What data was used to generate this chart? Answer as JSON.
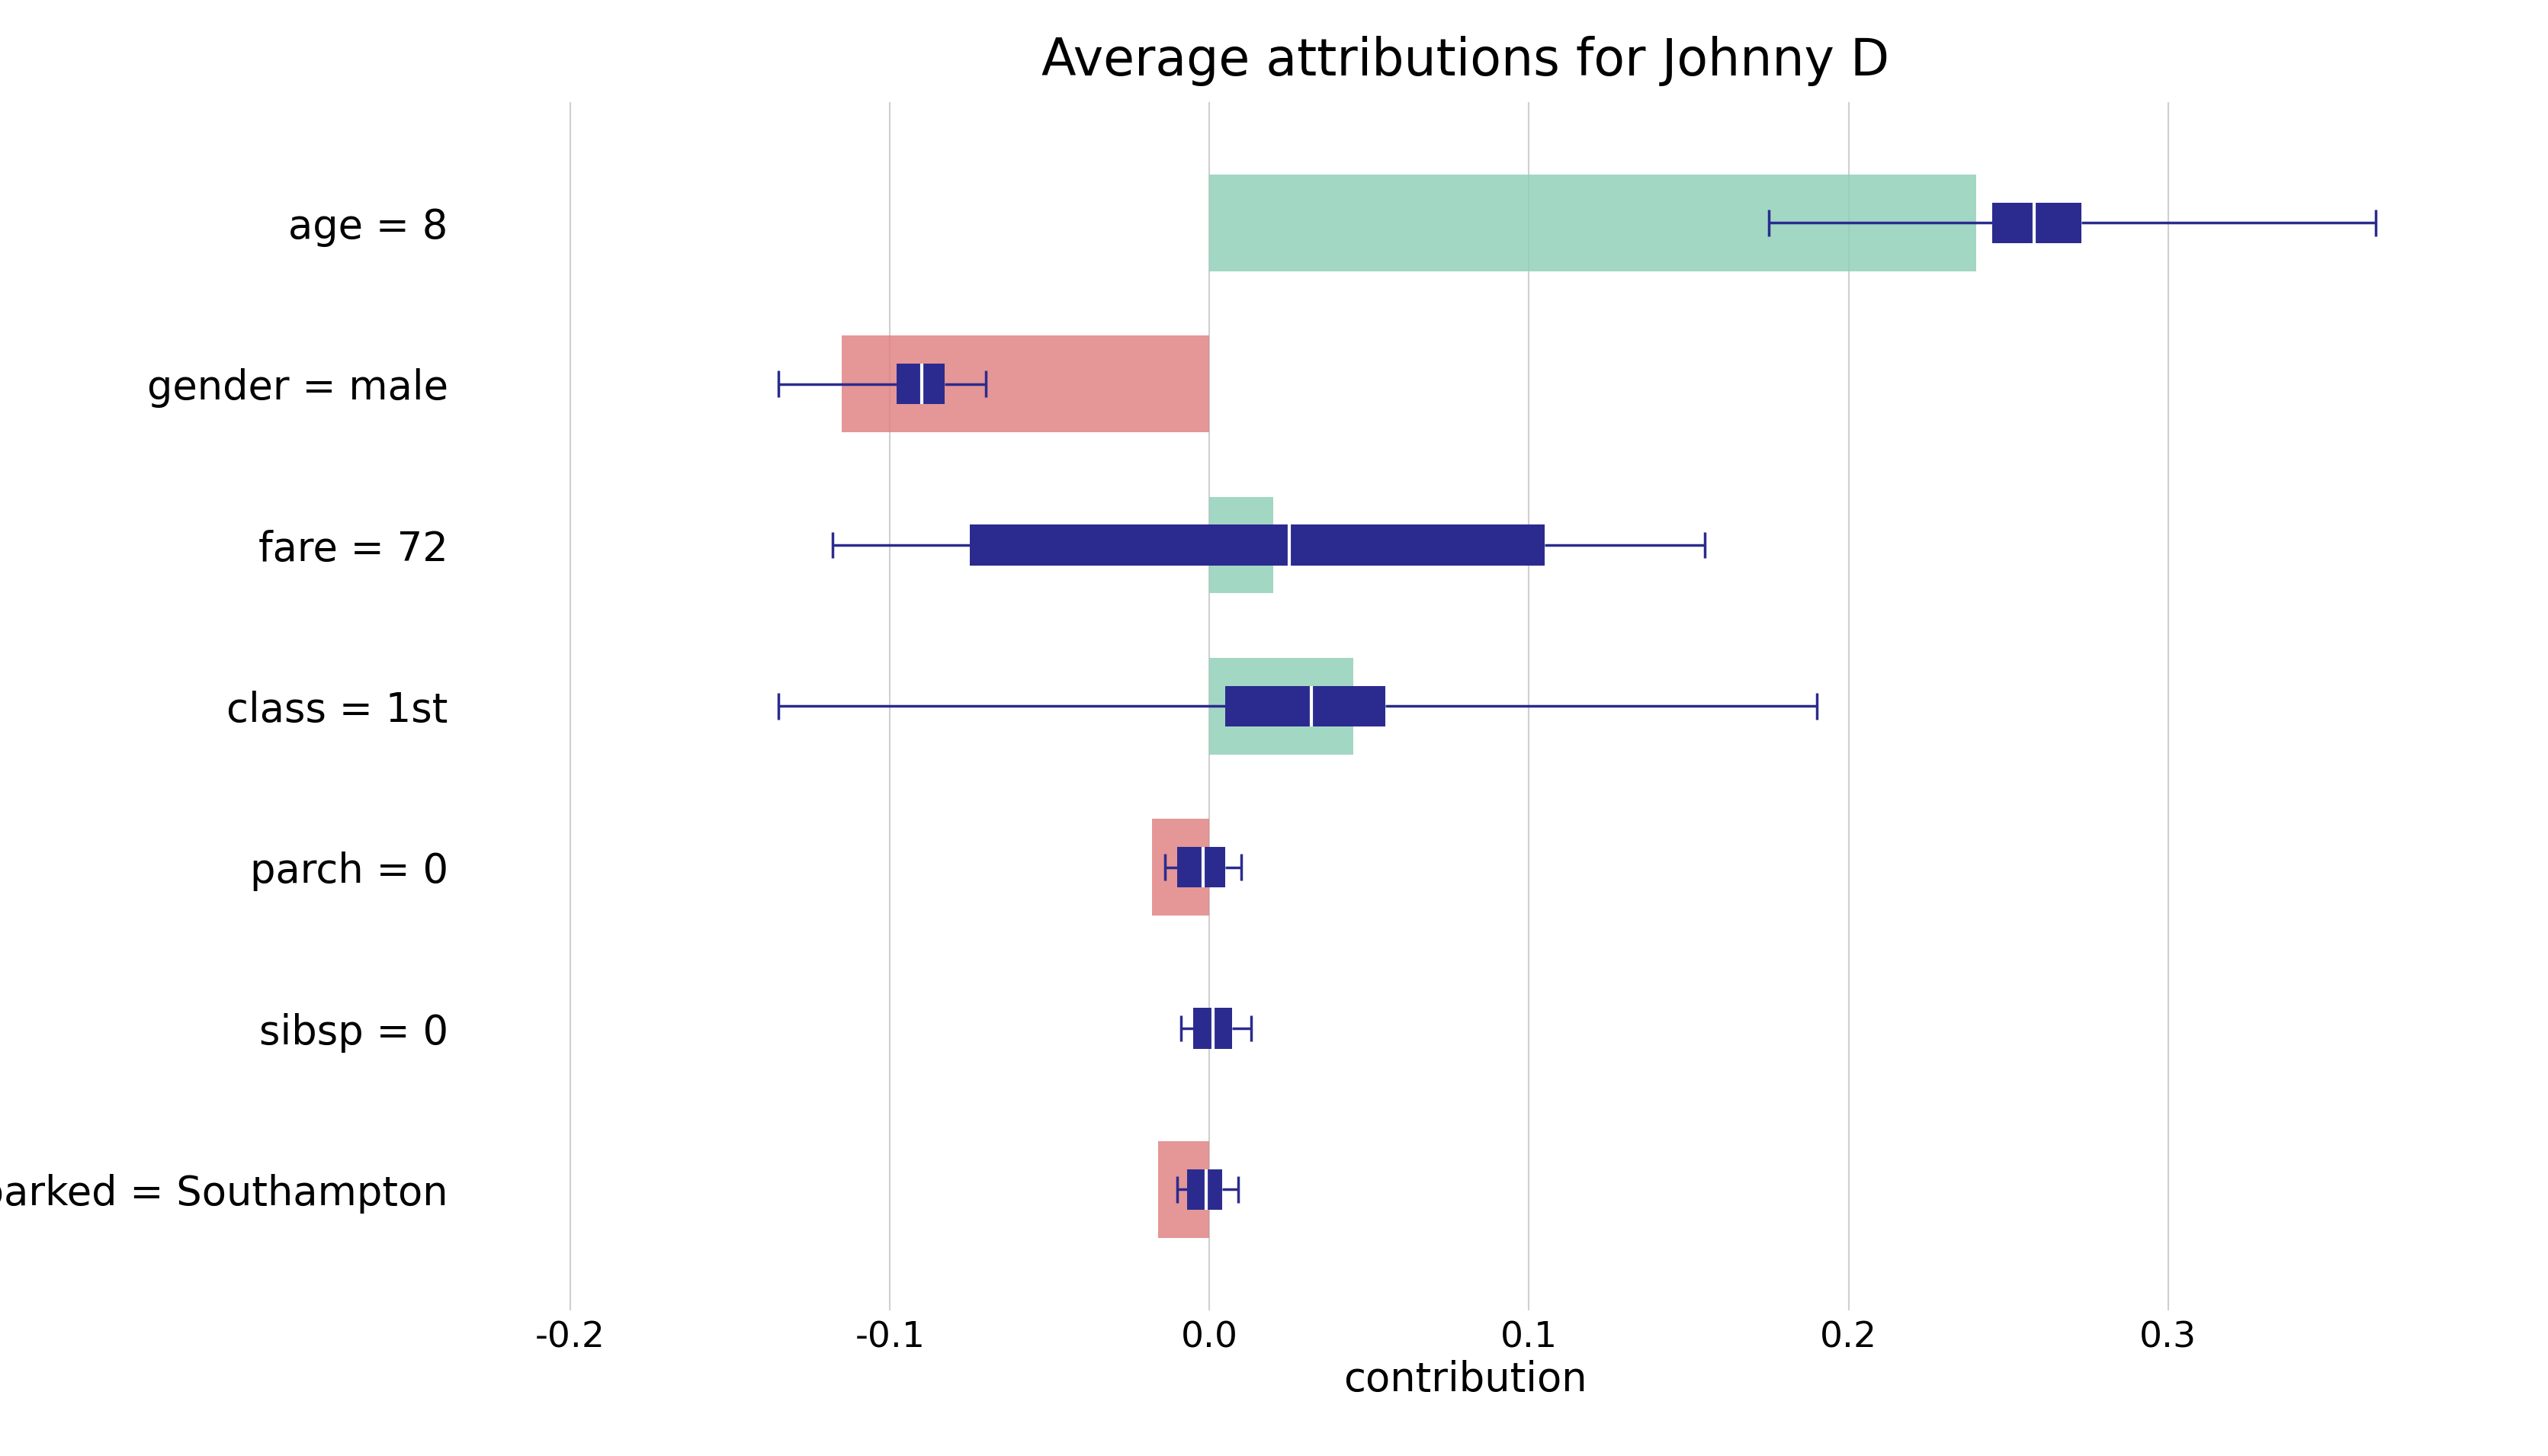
{
  "title": "Average attributions for Johnny D",
  "xlabel": "contribution",
  "variables": [
    "age = 8",
    "gender = male",
    "fare = 72",
    "class = 1st",
    "parch = 0",
    "sibsp = 0",
    "embarked = Southampton"
  ],
  "bar_means": [
    0.24,
    -0.115,
    0.02,
    0.045,
    -0.018,
    0.0,
    -0.016
  ],
  "bar_colors": [
    "#8ecfb8",
    "#e07f7f",
    "#8ecfb8",
    "#8ecfb8",
    "#e07f7f",
    "#8ecfb8",
    "#e07f7f"
  ],
  "boxplot_data": {
    "age = 8": {
      "q1": 0.245,
      "median": 0.258,
      "q3": 0.273,
      "whislo": 0.175,
      "whishi": 0.365
    },
    "gender = male": {
      "q1": -0.098,
      "median": -0.09,
      "q3": -0.083,
      "whislo": -0.135,
      "whishi": -0.07
    },
    "fare = 72": {
      "q1": -0.075,
      "median": 0.025,
      "q3": 0.105,
      "whislo": -0.118,
      "whishi": 0.155
    },
    "class = 1st": {
      "q1": 0.005,
      "median": 0.032,
      "q3": 0.055,
      "whislo": -0.135,
      "whishi": 0.19
    },
    "parch = 0": {
      "q1": -0.01,
      "median": -0.002,
      "q3": 0.005,
      "whislo": -0.014,
      "whishi": 0.01
    },
    "sibsp = 0": {
      "q1": -0.005,
      "median": 0.001,
      "q3": 0.007,
      "whislo": -0.009,
      "whishi": 0.013
    },
    "embarked = Southampton": {
      "q1": -0.007,
      "median": -0.001,
      "q3": 0.004,
      "whislo": -0.01,
      "whishi": 0.009
    }
  },
  "xlim": [
    -0.235,
    0.395
  ],
  "xticks": [
    -0.2,
    -0.1,
    0.0,
    0.1,
    0.2,
    0.3
  ],
  "xtick_labels": [
    "-0.2",
    "-0.1",
    "0.0",
    "0.1",
    "0.2",
    "0.3"
  ],
  "background_color": "#ffffff",
  "grid_color": "#d0d0d0",
  "bar_height": 0.6,
  "boxplot_color": "#2b2b8f",
  "title_fontsize": 48,
  "label_fontsize": 38,
  "tick_fontsize": 34,
  "ytick_fontsize": 38,
  "line_width": 2.5
}
